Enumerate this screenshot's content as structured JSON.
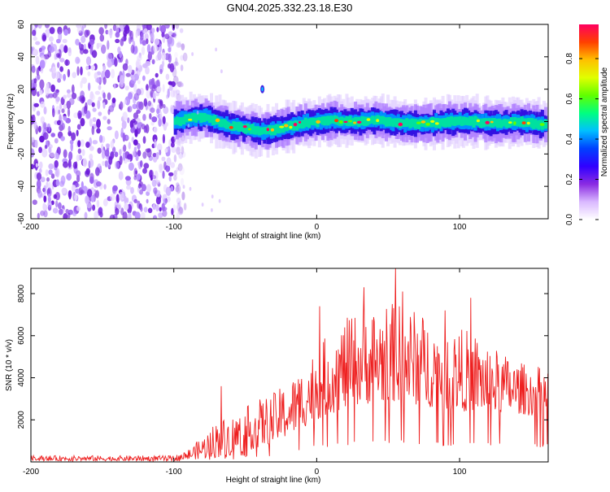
{
  "chart_data": [
    {
      "type": "heatmap",
      "title": "GN04.2025.332.23.18.E30",
      "xlabel": "Height of straight line (km)",
      "ylabel": "Frequency (Hz)",
      "xlim": [
        -200,
        162
      ],
      "ylim": [
        -60,
        60
      ],
      "xticks": [
        -200,
        -100,
        0,
        100
      ],
      "yticks": [
        -60,
        -40,
        -20,
        0,
        20,
        40,
        60
      ],
      "colorbar": {
        "label": "Normalized spectral amplitude",
        "range": [
          0,
          0.97
        ],
        "ticks": [
          0.0,
          0.2,
          0.4,
          0.6,
          0.8
        ],
        "colors": [
          "#ffffff",
          "#d9b8ff",
          "#8a2be2",
          "#3000ff",
          "#0040ff",
          "#00c0ff",
          "#00ff80",
          "#60ff00",
          "#e0ff00",
          "#ffc000",
          "#ff4000",
          "#ff0060"
        ]
      },
      "noise_region_x": [
        -200,
        -100
      ],
      "ridge": {
        "x": [
          -100,
          -90,
          -80,
          -70,
          -60,
          -50,
          -40,
          -30,
          -20,
          -10,
          0,
          10,
          20,
          30,
          40,
          50,
          60,
          70,
          80,
          90,
          100,
          110,
          120,
          130,
          140,
          150,
          160
        ],
        "freq": [
          0,
          2,
          3,
          0,
          -3,
          -4,
          -6,
          -5,
          -3,
          -1,
          0,
          1,
          0,
          0,
          1,
          0,
          -1,
          -1,
          -1,
          0,
          0,
          0,
          -1,
          -1,
          0,
          -1,
          -2
        ]
      },
      "artifacts": [
        {
          "x": -38,
          "freq": 20
        }
      ]
    },
    {
      "type": "line",
      "xlabel": "Height of straight line (km)",
      "ylabel": "SNR (10 * v/v)",
      "xlim": [
        -200,
        162
      ],
      "ylim": [
        0,
        9200
      ],
      "xticks": [
        -200,
        -100,
        0,
        100
      ],
      "yticks": [
        2000,
        4000,
        6000,
        8000
      ],
      "series": [
        {
          "name": "SNR",
          "color": "#ee2020",
          "envelope_x": [
            -200,
            -150,
            -100,
            -90,
            -80,
            -70,
            -60,
            -50,
            -40,
            -30,
            -20,
            -10,
            0,
            10,
            20,
            30,
            40,
            50,
            60,
            70,
            80,
            90,
            100,
            110,
            120,
            130,
            140,
            150,
            162
          ],
          "envelope_max": [
            300,
            300,
            300,
            600,
            1200,
            2000,
            2200,
            2600,
            3000,
            3300,
            3800,
            4500,
            5500,
            6200,
            6800,
            7200,
            7400,
            7600,
            7500,
            7200,
            6800,
            6600,
            6400,
            6200,
            5600,
            5200,
            4800,
            4600,
            4500
          ],
          "envelope_min": [
            50,
            50,
            50,
            100,
            150,
            200,
            300,
            500,
            700,
            900,
            1200,
            1600,
            2000,
            2300,
            2500,
            2700,
            2800,
            2800,
            2800,
            2700,
            2600,
            2500,
            2400,
            2400,
            2300,
            2300,
            2300,
            2200,
            2200
          ],
          "peaks": [
            {
              "x": -67,
              "y": 3600
            },
            {
              "x": 2,
              "y": 7400
            },
            {
              "x": 33,
              "y": 8300
            },
            {
              "x": 55,
              "y": 9200
            },
            {
              "x": 60,
              "y": 8100
            },
            {
              "x": 90,
              "y": 7200
            },
            {
              "x": 108,
              "y": 7800
            }
          ]
        }
      ]
    }
  ]
}
